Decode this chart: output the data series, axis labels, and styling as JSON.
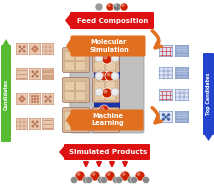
{
  "bg_color": "#ffffff",
  "feed_label": "Feed Composition",
  "mol_sim_label": "Molecular\nSimulation",
  "ml_label": "Machine\nLearning",
  "products_label": "Simulated Products",
  "candidates_label": "Candidates",
  "top_candidates_label": "Top Candidates",
  "feed_box_color": "#dd1111",
  "mol_sim_color": "#e07020",
  "ml_color": "#e07020",
  "products_box_color": "#dd1111",
  "candidates_color": "#55bb33",
  "top_candidates_color": "#2244cc",
  "arrow_red": "#dd1111",
  "center_blue": "#1833aa",
  "zeolite_tan": "#d4b090",
  "zeolite_dark": "#b89070",
  "atom_red": "#cc2200",
  "atom_white": "#e8e8e8",
  "atom_gray": "#777777",
  "left_icon_colors": [
    "#c87858",
    "#d08868",
    "#b86848"
  ],
  "right_icon_blue": "#4466bb",
  "right_icon_red": "#cc4444"
}
